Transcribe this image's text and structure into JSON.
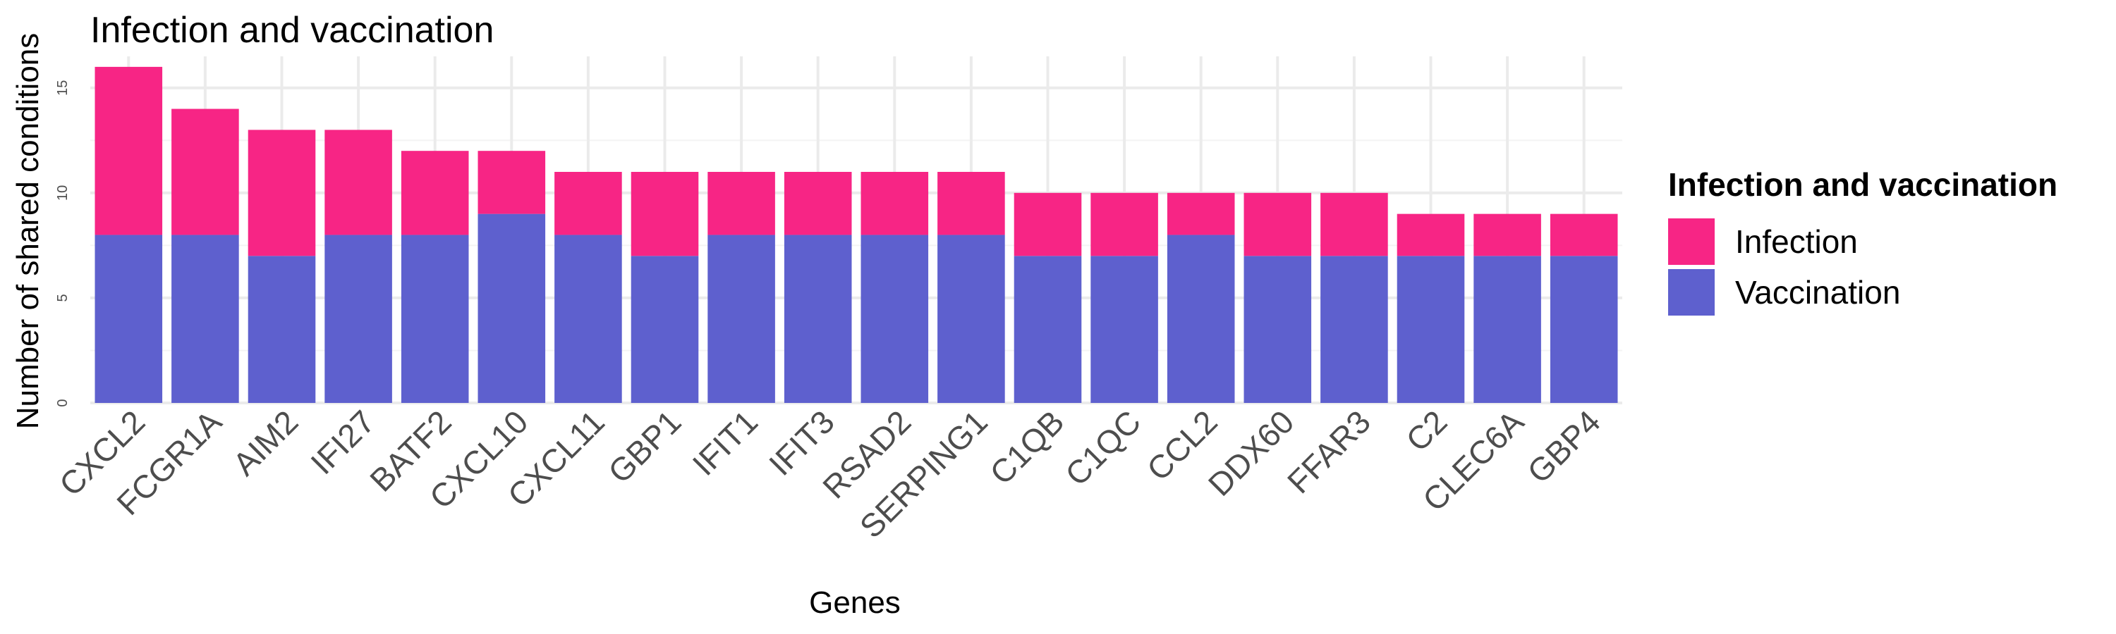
{
  "chart_data": {
    "type": "bar",
    "stacked": true,
    "title": "Infection and vaccination",
    "xlabel": "Genes",
    "ylabel": "Number of shared conditions",
    "ylim": [
      0,
      16.5
    ],
    "yticks": [
      0,
      5,
      10,
      15
    ],
    "grid": true,
    "legend": {
      "title": "Infection and vaccination",
      "placement": "right"
    },
    "categories": [
      "CXCL2",
      "FCGR1A",
      "AIM2",
      "IFI27",
      "BATF2",
      "CXCL10",
      "CXCL11",
      "GBP1",
      "IFIT1",
      "IFIT3",
      "RSAD2",
      "SERPING1",
      "C1QB",
      "C1QC",
      "CCL2",
      "DDX60",
      "FFAR3",
      "C2",
      "CLEC6A",
      "GBP4"
    ],
    "series": [
      {
        "name": "Vaccination",
        "color": "#5E60CE",
        "values": [
          8,
          8,
          7,
          8,
          8,
          9,
          8,
          7,
          8,
          8,
          8,
          8,
          7,
          7,
          8,
          7,
          7,
          7,
          7,
          7
        ]
      },
      {
        "name": "Infection",
        "color": "#F72585",
        "values": [
          8,
          6,
          6,
          5,
          4,
          3,
          3,
          4,
          3,
          3,
          3,
          3,
          3,
          3,
          2,
          3,
          3,
          2,
          2,
          2
        ]
      }
    ],
    "stack_order_bottom_to_top": [
      "Vaccination",
      "Infection"
    ],
    "legend_order": [
      "Infection",
      "Vaccination"
    ]
  }
}
